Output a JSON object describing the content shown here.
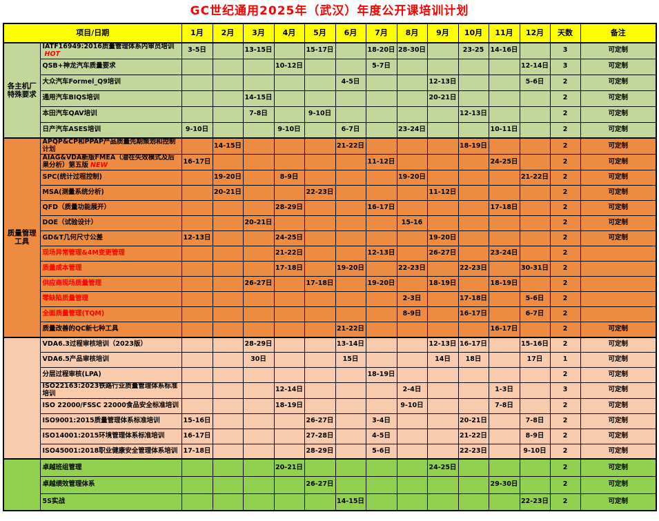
{
  "title": "GC世纪通用2025年（武汉）年度公开课培训计划",
  "colors": {
    "title_red": "#FF0000",
    "header_yellow": "#FFFF00",
    "group1_bg": "#C4D79B",
    "group2_bg": "#ED8B40",
    "group3_bg": "#F8CBAD",
    "group4_bg": "#92D050",
    "highlight_red": "#FF0000",
    "border": "#000000"
  },
  "table": {
    "header": {
      "project_date": "项目/日期",
      "months": [
        "1月",
        "2月",
        "3月",
        "4月",
        "5月",
        "6月",
        "7月",
        "8月",
        "9月",
        "10月",
        "11月",
        "12月"
      ],
      "days": "天数",
      "remarks": "备注"
    },
    "groups": [
      {
        "label": "各主机厂特殊要求",
        "bg": "#C4D79B",
        "rows": [
          {
            "name": "IATF16949:2016质量管理体系内审员培训",
            "badge": "HOT",
            "red": false,
            "months": [
              "3-5日",
              "",
              "13-15日",
              "",
              "15-17日",
              "",
              "18-20日",
              "28-30日",
              "",
              "23-25",
              "14-16日",
              ""
            ],
            "days": "3",
            "remark": "可定制"
          },
          {
            "name": "QSB+神龙汽车质量要求",
            "badge": "",
            "red": false,
            "months": [
              "",
              "",
              "",
              "10-12日",
              "",
              "",
              "5-7日",
              "",
              "",
              "",
              "",
              "12-14日"
            ],
            "days": "3",
            "remark": "可定制"
          },
          {
            "name": "大众汽车Formel_Q9培训",
            "badge": "",
            "red": false,
            "months": [
              "",
              "",
              "",
              "",
              "",
              "4-5日",
              "",
              "",
              "12-13日",
              "",
              "",
              "5-6日"
            ],
            "days": "2",
            "remark": "可定制"
          },
          {
            "name": "通用汽车BIQS培训",
            "badge": "",
            "red": false,
            "months": [
              "",
              "",
              "14-15日",
              "",
              "",
              "",
              "",
              "",
              "20-21日",
              "",
              "",
              ""
            ],
            "days": "2",
            "remark": "可定制"
          },
          {
            "name": "本田汽车QAV培训",
            "badge": "",
            "red": false,
            "months": [
              "",
              "",
              "7-8日",
              "",
              "9-10日",
              "",
              "",
              "",
              "",
              "12-13日",
              "",
              ""
            ],
            "days": "2",
            "remark": "可定制"
          },
          {
            "name": "日产汽车ASES培训",
            "badge": "",
            "red": false,
            "months": [
              "9-10日",
              "",
              "",
              "9-10日",
              "",
              "6-7日",
              "",
              "23-24日",
              "",
              "",
              "10-11日",
              ""
            ],
            "days": "2",
            "remark": "可定制"
          }
        ]
      },
      {
        "label": "质量管理工具",
        "bg": "#ED8B40",
        "rows": [
          {
            "name": "APQP&CP和PPAP产品质量先期策划和控制计划",
            "badge": "",
            "red": false,
            "months": [
              "",
              "14-15日",
              "",
              "",
              "",
              "21-22日",
              "",
              "",
              "",
              "18-19日",
              "",
              ""
            ],
            "days": "2",
            "remark": "可定制"
          },
          {
            "name": "AIAG&VDA新版FMEA（潜在失效模式及后果分析）第五版",
            "badge": "NEW",
            "red": false,
            "months": [
              "16-17日",
              "",
              "",
              "",
              "",
              "",
              "11-12日",
              "",
              "",
              "",
              "24-25日",
              ""
            ],
            "days": "2",
            "remark": "可定制"
          },
          {
            "name": "SPC(统计过程控制)",
            "badge": "",
            "red": false,
            "months": [
              "",
              "19-20日",
              "",
              "8-9日",
              "",
              "",
              "",
              "19-20日",
              "",
              "",
              "",
              "21-22日"
            ],
            "days": "2",
            "remark": "可定制"
          },
          {
            "name": "MSA(测量系统分析)",
            "badge": "",
            "red": false,
            "months": [
              "",
              "20-21日",
              "",
              "",
              "22-23日",
              "",
              "",
              "",
              "11-12日",
              "",
              "",
              ""
            ],
            "days": "2",
            "remark": "可定制"
          },
          {
            "name": "QFD（质量功能展开）",
            "badge": "",
            "red": false,
            "months": [
              "",
              "",
              "",
              "28-29日",
              "",
              "",
              "16-17日",
              "",
              "",
              "",
              "17-18日",
              ""
            ],
            "days": "2",
            "remark": "可定制"
          },
          {
            "name": "DOE（试验设计）",
            "badge": "",
            "red": false,
            "months": [
              "",
              "",
              "20-21日",
              "",
              "",
              "",
              "",
              "15-16",
              "",
              "",
              "",
              ""
            ],
            "days": "2",
            "remark": "可定制"
          },
          {
            "name": "GD&T几何尺寸公差",
            "badge": "",
            "red": false,
            "months": [
              "12-13日",
              "",
              "",
              "24-25日",
              "",
              "",
              "",
              "",
              "19-20日",
              "",
              "",
              ""
            ],
            "days": "2",
            "remark": "可定制"
          },
          {
            "name": "现场异常管理&4M变更管理",
            "badge": "",
            "red": true,
            "months": [
              "",
              "",
              "",
              "21-22日",
              "",
              "",
              "12-13日",
              "",
              "26-27日",
              "",
              "23-24日",
              ""
            ],
            "days": "2",
            "remark": ""
          },
          {
            "name": "质量成本管理",
            "badge": "",
            "red": true,
            "months": [
              "",
              "",
              "",
              "17-18日",
              "",
              "19-20日",
              "",
              "22-23日",
              "",
              "22-23日",
              "",
              "30-31日"
            ],
            "days": "2",
            "remark": ""
          },
          {
            "name": "供应商现场质量管理",
            "badge": "",
            "red": true,
            "months": [
              "",
              "",
              "26-27日",
              "",
              "17-18日",
              "",
              "19-20日",
              "",
              "18-19日",
              "",
              "18-19日",
              ""
            ],
            "days": "2",
            "remark": ""
          },
          {
            "name": "零缺陷质量管理",
            "badge": "",
            "red": true,
            "months": [
              "",
              "",
              "",
              "",
              "",
              "",
              "",
              "2-3日",
              "",
              "17-18日",
              "",
              "5-6日"
            ],
            "days": "2",
            "remark": ""
          },
          {
            "name": "全面质量管理(TQM)",
            "badge": "",
            "red": true,
            "months": [
              "",
              "",
              "",
              "",
              "",
              "",
              "",
              "8-9日",
              "",
              "16-17日",
              "",
              "6-7日"
            ],
            "days": "2",
            "remark": ""
          },
          {
            "name": "质量改善的QC新七种工具",
            "badge": "",
            "red": false,
            "months": [
              "",
              "",
              "",
              "",
              "",
              "21-22日",
              "",
              "",
              "",
              "",
              "16-17日",
              ""
            ],
            "days": "2",
            "remark": "可定制"
          }
        ]
      },
      {
        "label": "",
        "bg": "#F8CBAD",
        "rows": [
          {
            "name": "VDA6.3过程审核培训（2023版）",
            "badge": "",
            "red": false,
            "months": [
              "",
              "",
              "28-29日",
              "",
              "",
              "13-14日",
              "",
              "",
              "12-13日",
              "16-17日",
              "",
              "15-16日"
            ],
            "days": "2",
            "remark": "可定制"
          },
          {
            "name": "VDA6.5产品审核培训",
            "badge": "",
            "red": false,
            "months": [
              "",
              "",
              "30日",
              "",
              "",
              "15日",
              "",
              "",
              "14日",
              "18日",
              "",
              "17日"
            ],
            "days": "1",
            "remark": "可定制"
          },
          {
            "name": "分层过程审核(LPA)",
            "badge": "",
            "red": false,
            "months": [
              "",
              "",
              "",
              "",
              "",
              "",
              "18-19日",
              "",
              "",
              "",
              "",
              ""
            ],
            "days": "2",
            "remark": "可定制"
          },
          {
            "name": "ISO22163:2023铁路行业质量管理体系标准培训",
            "badge": "",
            "red": false,
            "months": [
              "",
              "",
              "",
              "12-14日",
              "",
              "",
              "",
              "2-4日",
              "",
              "",
              "1-3日",
              ""
            ],
            "days": "3",
            "remark": "可定制"
          },
          {
            "name": "ISO 22000/FSSC 22000食品安全标准培训",
            "badge": "",
            "red": false,
            "months": [
              "",
              "",
              "",
              "18-19日",
              "",
              "",
              "",
              "9-10日",
              "",
              "",
              "7-8日",
              ""
            ],
            "days": "2",
            "remark": "可定制"
          },
          {
            "name": "ISO9001:2015质量管理体系标准培训",
            "badge": "",
            "red": false,
            "months": [
              "15-16日",
              "",
              "",
              "",
              "26-27日",
              "",
              "3-4日",
              "",
              "",
              "20-21日",
              "",
              "7-8日"
            ],
            "days": "2",
            "remark": "可定制"
          },
          {
            "name": "ISO14001:2015环境管理体系标准培训",
            "badge": "",
            "red": false,
            "months": [
              "16-17日",
              "",
              "",
              "",
              "27-28日",
              "",
              "4-5日",
              "",
              "",
              "21-22日",
              "",
              "8-9日"
            ],
            "days": "2",
            "remark": "可定制"
          },
          {
            "name": "ISO45001:2018职业健康安全管理体系培训",
            "badge": "",
            "red": false,
            "months": [
              "17-18日",
              "",
              "",
              "",
              "28-29日",
              "",
              "5-6日",
              "",
              "",
              "22-23日",
              "",
              "9-10日"
            ],
            "days": "2",
            "remark": "可定制"
          }
        ]
      },
      {
        "label": "",
        "bg": "#92D050",
        "rows": [
          {
            "name": "卓越班组管理",
            "badge": "",
            "red": false,
            "months": [
              "",
              "",
              "",
              "20-21日",
              "",
              "",
              "",
              "",
              "24-25日",
              "",
              "",
              ""
            ],
            "days": "2",
            "remark": "可定制"
          },
          {
            "name": "卓越绩效管理体系",
            "badge": "",
            "red": false,
            "months": [
              "",
              "",
              "",
              "",
              "26-27日",
              "",
              "",
              "",
              "",
              "",
              "29-30日",
              ""
            ],
            "days": "2",
            "remark": "可定制"
          },
          {
            "name": "5S实战",
            "badge": "",
            "red": false,
            "months": [
              "",
              "",
              "",
              "",
              "",
              "14-15日",
              "",
              "",
              "",
              "",
              "",
              "22-23日"
            ],
            "days": "2",
            "remark": "可定制"
          }
        ]
      }
    ]
  }
}
